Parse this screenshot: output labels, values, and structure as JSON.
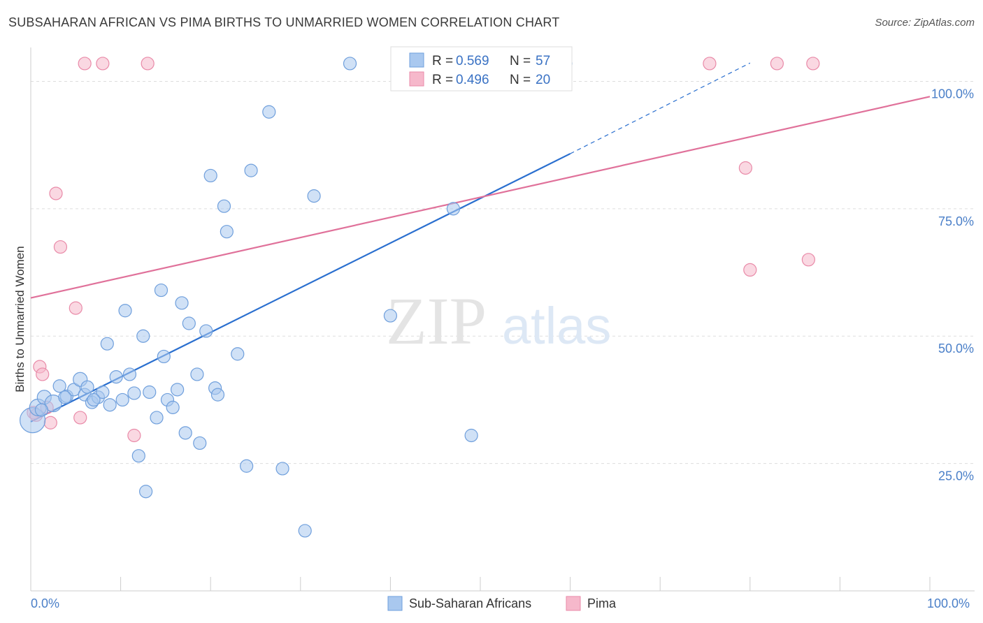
{
  "title": "SUBSAHARAN AFRICAN VS PIMA BIRTHS TO UNMARRIED WOMEN CORRELATION CHART",
  "source": "Source: ZipAtlas.com",
  "watermark": {
    "zip": "ZIP",
    "atlas": "atlas"
  },
  "colors": {
    "blue_fill": "#a9c8ef",
    "blue_stroke": "#6f9fdc",
    "blue_line": "#2a6fcf",
    "pink_fill": "#f6b8cb",
    "pink_stroke": "#e98aa8",
    "pink_line": "#e0719a",
    "grid": "#dddddd",
    "axis_text": "#4a7fc8"
  },
  "legend": {
    "rows": [
      {
        "r_label": "R = ",
        "r_value": "0.569",
        "n_label": "N = ",
        "n_value": "57",
        "color": "blue"
      },
      {
        "r_label": "R = ",
        "r_value": "0.496",
        "n_label": "N = ",
        "n_value": "20",
        "color": "pink"
      }
    ]
  },
  "bottom_legend": [
    "Sub-Saharan Africans",
    "Pima"
  ],
  "chart_data": {
    "type": "scatter",
    "title": "SUBSAHARAN AFRICAN VS PIMA BIRTHS TO UNMARRIED WOMEN CORRELATION CHART",
    "xlabel": "",
    "ylabel": "Births to Unmarried Women",
    "xlim": [
      0,
      100
    ],
    "ylim": [
      0,
      105
    ],
    "x_tick_labels": [
      "0.0%",
      "100.0%"
    ],
    "y_tick_labels": [
      "25.0%",
      "50.0%",
      "75.0%",
      "100.0%"
    ],
    "y_ticks": [
      25,
      50,
      75,
      100
    ],
    "grid": true,
    "legend_position": "top-center",
    "series": [
      {
        "name": "Sub-Saharan Africans",
        "color": "blue",
        "R": 0.569,
        "N": 57,
        "trend": {
          "x0": 0,
          "y0": 33.2,
          "x1": 60,
          "y1": 85.8,
          "dash_x1": 80,
          "dash_y1": 103.6
        },
        "points": [
          [
            0.2,
            33.5,
            18
          ],
          [
            0.8,
            36.0,
            12
          ],
          [
            1.5,
            38.0,
            10
          ],
          [
            2.5,
            36.8,
            12
          ],
          [
            3.2,
            40.2,
            9
          ],
          [
            4.0,
            38.2,
            9
          ],
          [
            4.8,
            39.5,
            9
          ],
          [
            5.5,
            41.5,
            10
          ],
          [
            6.0,
            38.5,
            9
          ],
          [
            6.3,
            40.0,
            9
          ],
          [
            6.8,
            37.0,
            9
          ],
          [
            7.5,
            38.0,
            9
          ],
          [
            8.0,
            39.0,
            9
          ],
          [
            8.5,
            48.5,
            9
          ],
          [
            8.8,
            36.5,
            9
          ],
          [
            9.5,
            42.0,
            9
          ],
          [
            10.2,
            37.5,
            9
          ],
          [
            10.5,
            55.0,
            9
          ],
          [
            11.0,
            42.5,
            9
          ],
          [
            11.5,
            38.8,
            9
          ],
          [
            12.0,
            26.5,
            9
          ],
          [
            12.5,
            50.0,
            9
          ],
          [
            12.8,
            19.5,
            9
          ],
          [
            13.2,
            39.0,
            9
          ],
          [
            14.0,
            34.0,
            9
          ],
          [
            14.5,
            59.0,
            9
          ],
          [
            14.8,
            46.0,
            9
          ],
          [
            15.2,
            37.5,
            9
          ],
          [
            15.8,
            36.0,
            9
          ],
          [
            16.3,
            39.5,
            9
          ],
          [
            16.8,
            56.5,
            9
          ],
          [
            17.2,
            31.0,
            9
          ],
          [
            17.6,
            52.5,
            9
          ],
          [
            18.5,
            42.5,
            9
          ],
          [
            18.8,
            29.0,
            9
          ],
          [
            19.5,
            51.0,
            9
          ],
          [
            20.0,
            81.5,
            9
          ],
          [
            20.5,
            39.8,
            9
          ],
          [
            20.8,
            38.5,
            9
          ],
          [
            21.5,
            75.5,
            9
          ],
          [
            21.8,
            70.5,
            9
          ],
          [
            23.0,
            46.5,
            9
          ],
          [
            24.0,
            24.5,
            9
          ],
          [
            24.5,
            82.5,
            9
          ],
          [
            26.5,
            94.0,
            9
          ],
          [
            28.0,
            24.0,
            9
          ],
          [
            30.5,
            11.8,
            9
          ],
          [
            31.5,
            77.5,
            9
          ],
          [
            35.5,
            103.5,
            9
          ],
          [
            40.0,
            54.0,
            9
          ],
          [
            47.0,
            75.0,
            9
          ],
          [
            49.0,
            30.5,
            9
          ],
          [
            55.5,
            103.5,
            9
          ],
          [
            59.5,
            103.5,
            9
          ],
          [
            1.2,
            35.5,
            9
          ],
          [
            3.8,
            38.0,
            9
          ],
          [
            7.0,
            37.5,
            9
          ]
        ]
      },
      {
        "name": "Pima",
        "color": "pink",
        "R": 0.496,
        "N": 20,
        "trend": {
          "x0": 0,
          "y0": 57.5,
          "x1": 100,
          "y1": 97.0
        },
        "points": [
          [
            0.3,
            35.0,
            9
          ],
          [
            1.0,
            44.0,
            9
          ],
          [
            1.3,
            42.5,
            9
          ],
          [
            1.8,
            36.0,
            9
          ],
          [
            2.2,
            33.0,
            9
          ],
          [
            2.8,
            78.0,
            9
          ],
          [
            3.3,
            67.5,
            9
          ],
          [
            5.0,
            55.5,
            9
          ],
          [
            5.5,
            34.0,
            9
          ],
          [
            6.0,
            103.5,
            9
          ],
          [
            8.0,
            103.5,
            9
          ],
          [
            11.5,
            30.5,
            9
          ],
          [
            13.0,
            103.5,
            9
          ],
          [
            75.5,
            103.5,
            9
          ],
          [
            79.5,
            83.0,
            9
          ],
          [
            80.0,
            63.0,
            9
          ],
          [
            83.0,
            103.5,
            9
          ],
          [
            86.5,
            65.0,
            9
          ],
          [
            87.0,
            103.5,
            9
          ],
          [
            0.6,
            34.5,
            9
          ]
        ]
      }
    ]
  }
}
